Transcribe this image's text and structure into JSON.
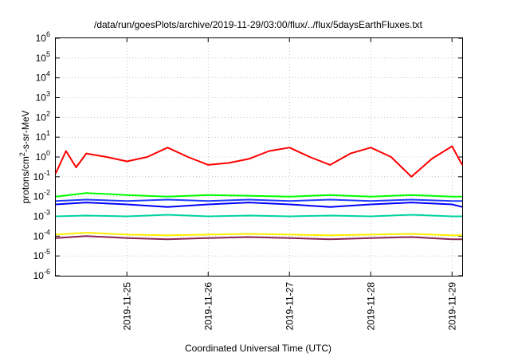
{
  "chart_data": {
    "type": "line",
    "title": "/data/run/goesPlots/archive/2019-11-29/03:00/flux/../flux/5daysEarthFluxes.txt",
    "xlabel": "Coordinated Universal Time (UTC)",
    "ylabel": {
      "pre": "protons/cm",
      "sup": "2",
      "post": "-s-sr-MeV"
    },
    "yscale": "log",
    "ylim": [
      -6,
      6
    ],
    "ylim_note": "powers of ten: 1e-6 to 1e6",
    "yticks": [
      {
        "exp": -6,
        "base": "10",
        "sup": "-6"
      },
      {
        "exp": -5,
        "base": "10",
        "sup": "-5"
      },
      {
        "exp": -4,
        "base": "10",
        "sup": "-4"
      },
      {
        "exp": -3,
        "base": "10",
        "sup": "-3"
      },
      {
        "exp": -2,
        "base": "10",
        "sup": "-2"
      },
      {
        "exp": -1,
        "base": "10",
        "sup": "-1"
      },
      {
        "exp": 0,
        "base": "10",
        "sup": "0"
      },
      {
        "exp": 1,
        "base": "10",
        "sup": "1"
      },
      {
        "exp": 2,
        "base": "10",
        "sup": "2"
      },
      {
        "exp": 3,
        "base": "10",
        "sup": "3"
      },
      {
        "exp": 4,
        "base": "10",
        "sup": "4"
      },
      {
        "exp": 5,
        "base": "10",
        "sup": "5"
      },
      {
        "exp": 6,
        "base": "10",
        "sup": "6"
      }
    ],
    "xlim": [
      "2019-11-24T03:00",
      "2019-11-29T03:00"
    ],
    "xticks": [
      "2019-11-25",
      "2019-11-26",
      "2019-11-27",
      "2019-11-28",
      "2019-11-29"
    ],
    "grid": true,
    "series": [
      {
        "color": "#ff0000",
        "x": [
          "11-24 03:00",
          "11-24 06:00",
          "11-24 09:00",
          "11-24 12:00",
          "11-24 18:00",
          "11-25 00:00",
          "11-25 06:00",
          "11-25 12:00",
          "11-25 18:00",
          "11-26 00:00",
          "11-26 06:00",
          "11-26 12:00",
          "11-26 18:00",
          "11-27 00:00",
          "11-27 06:00",
          "11-27 12:00",
          "11-27 18:00",
          "11-28 00:00",
          "11-28 06:00",
          "11-28 12:00",
          "11-28 18:00",
          "11-29 00:00",
          "11-29 03:00"
        ],
        "y": [
          0.15,
          2.0,
          0.3,
          1.5,
          1.0,
          0.6,
          1.0,
          3.0,
          1.0,
          0.4,
          0.5,
          0.8,
          2.0,
          3.0,
          1.0,
          0.4,
          1.5,
          3.0,
          1.0,
          0.1,
          0.8,
          3.5,
          0.4
        ]
      },
      {
        "color": "#00ff00",
        "x": [
          "11-24 03:00",
          "11-24 12:00",
          "11-25 00:00",
          "11-25 12:00",
          "11-26 00:00",
          "11-26 12:00",
          "11-27 00:00",
          "11-27 12:00",
          "11-28 00:00",
          "11-28 12:00",
          "11-29 00:00",
          "11-29 03:00"
        ],
        "y": [
          0.01,
          0.015,
          0.012,
          0.01,
          0.012,
          0.011,
          0.01,
          0.012,
          0.01,
          0.012,
          0.01,
          0.01
        ]
      },
      {
        "color": "#0000ff",
        "x": [
          "11-24 03:00",
          "11-24 12:00",
          "11-25 00:00",
          "11-25 12:00",
          "11-26 00:00",
          "11-26 12:00",
          "11-27 00:00",
          "11-27 12:00",
          "11-28 00:00",
          "11-28 12:00",
          "11-29 00:00",
          "11-29 03:00"
        ],
        "y": [
          0.004,
          0.005,
          0.004,
          0.003,
          0.004,
          0.005,
          0.004,
          0.003,
          0.004,
          0.005,
          0.004,
          0.003
        ]
      },
      {
        "color": "#1e3cff",
        "x": [
          "11-24 03:00",
          "11-24 12:00",
          "11-25 00:00",
          "11-25 12:00",
          "11-26 00:00",
          "11-26 12:00",
          "11-27 00:00",
          "11-27 12:00",
          "11-28 00:00",
          "11-28 12:00",
          "11-29 00:00",
          "11-29 03:00"
        ],
        "y": [
          0.006,
          0.007,
          0.006,
          0.007,
          0.006,
          0.007,
          0.006,
          0.007,
          0.006,
          0.007,
          0.006,
          0.006
        ]
      },
      {
        "color": "#00d2a0",
        "x": [
          "11-24 03:00",
          "11-24 12:00",
          "11-25 00:00",
          "11-25 12:00",
          "11-26 00:00",
          "11-26 12:00",
          "11-27 00:00",
          "11-27 12:00",
          "11-28 00:00",
          "11-28 12:00",
          "11-29 00:00",
          "11-29 03:00"
        ],
        "y": [
          0.001,
          0.0011,
          0.001,
          0.0012,
          0.001,
          0.0011,
          0.001,
          0.0011,
          0.001,
          0.0012,
          0.001,
          0.001
        ]
      },
      {
        "color": "#ffee00",
        "x": [
          "11-24 03:00",
          "11-24 12:00",
          "11-25 00:00",
          "11-25 12:00",
          "11-26 00:00",
          "11-26 12:00",
          "11-27 00:00",
          "11-27 12:00",
          "11-28 00:00",
          "11-28 12:00",
          "11-29 00:00",
          "11-29 03:00"
        ],
        "y": [
          0.00012,
          0.00015,
          0.00012,
          0.00011,
          0.00012,
          0.00013,
          0.00012,
          0.00011,
          0.00012,
          0.00013,
          0.00011,
          0.00011
        ]
      },
      {
        "color": "#8b2252",
        "x": [
          "11-24 03:00",
          "11-24 12:00",
          "11-25 00:00",
          "11-25 12:00",
          "11-26 00:00",
          "11-26 12:00",
          "11-27 00:00",
          "11-27 12:00",
          "11-28 00:00",
          "11-28 12:00",
          "11-29 00:00",
          "11-29 03:00"
        ],
        "y": [
          8e-05,
          0.0001,
          8e-05,
          7e-05,
          8e-05,
          9e-05,
          8e-05,
          7e-05,
          8e-05,
          9e-05,
          7e-05,
          7e-05
        ]
      }
    ]
  }
}
